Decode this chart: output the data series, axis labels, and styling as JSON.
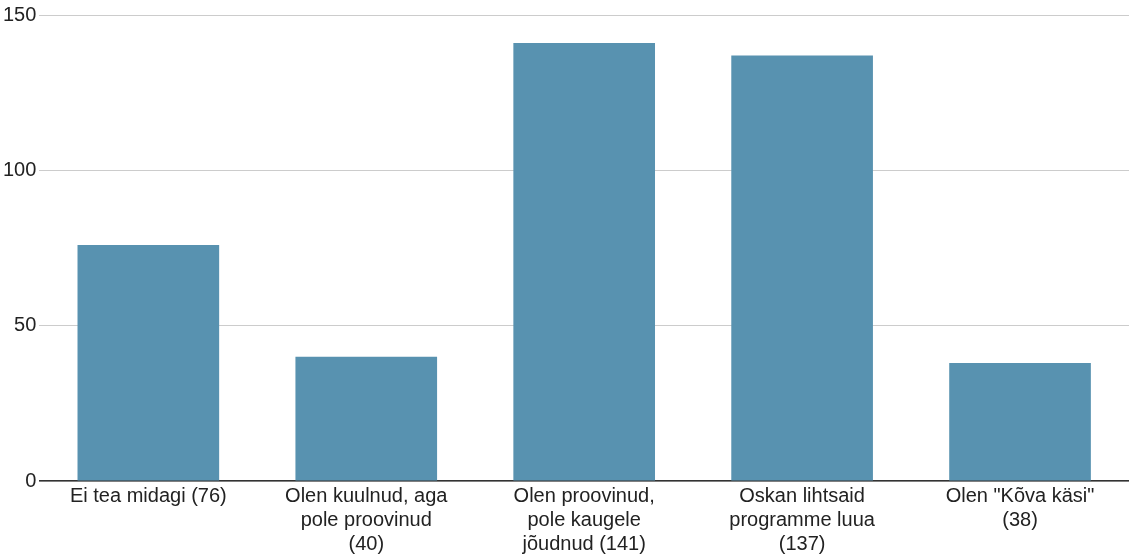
{
  "chart_data": {
    "type": "bar",
    "categories": [
      "Ei tea midagi (76)",
      "Olen kuulnud, aga pole proovinud (40)",
      "Olen proovinud, pole kaugele jõudnud (141)",
      "Oskan lihtsaid programme luua (137)",
      "Olen \"Kõva käsi\" (38)"
    ],
    "values": [
      76,
      40,
      141,
      137,
      38
    ],
    "color": "#5892b0",
    "ylim": [
      0,
      150
    ],
    "yticks": [
      0,
      50,
      100,
      150
    ],
    "grid": "y"
  }
}
